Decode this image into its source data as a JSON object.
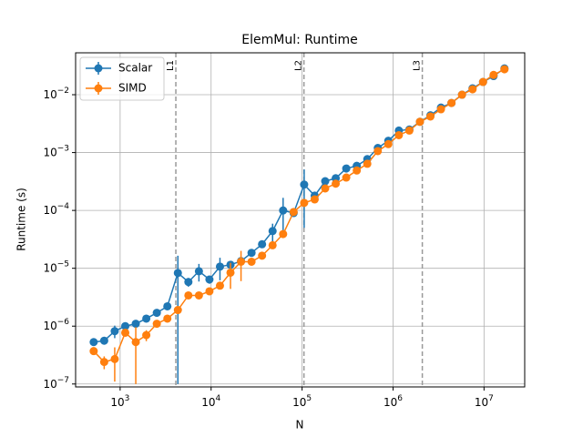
{
  "chart_data": {
    "type": "errorbar-line",
    "title": "ElemMul: Runtime",
    "xlabel": "N",
    "ylabel": "Runtime (s)",
    "xscale": "log",
    "yscale": "log",
    "grid": true,
    "legend": "upper left",
    "xlim": [
      324,
      28000000
    ],
    "ylim": [
      8.9e-08,
      0.053
    ],
    "xticks": [
      {
        "value": 1000,
        "label": "103"
      },
      {
        "value": 10000,
        "label": "104"
      },
      {
        "value": 100000,
        "label": "105"
      },
      {
        "value": 1000000,
        "label": "106"
      },
      {
        "value": 10000000,
        "label": "107"
      }
    ],
    "yticks": [
      {
        "value": 1e-07,
        "label": "10−7"
      },
      {
        "value": 1e-06,
        "label": "10−6"
      },
      {
        "value": 1e-05,
        "label": "10−5"
      },
      {
        "value": 0.0001,
        "label": "10−4"
      },
      {
        "value": 0.001,
        "label": "10−3"
      },
      {
        "value": 0.01,
        "label": "10−2"
      }
    ],
    "vlines": [
      {
        "x": 4096,
        "label": "L1"
      },
      {
        "x": 104858,
        "label": "L2"
      },
      {
        "x": 2097152,
        "label": "L3"
      }
    ],
    "x": [
      512,
      668,
      872,
      1139,
      1486,
      1939,
      2531,
      3304,
      4312,
      5628,
      7346,
      9588,
      12514,
      16334,
      21320,
      27826,
      36319,
      47404,
      61873,
      80758,
      105405,
      137575,
      179563,
      234366,
      305894,
      399254,
      521107,
      680148,
      887727,
      1158659,
      1512283,
      1973830,
      2576249,
      3362530,
      4388784,
      5728254,
      7476537,
      9758311,
      12736469,
      16777216
    ],
    "series": [
      {
        "name": "Scalar",
        "color": "#1f77b4",
        "values": [
          5.3e-07,
          5.6e-07,
          8.2e-07,
          1e-06,
          1.1e-06,
          1.35e-06,
          1.7e-06,
          2.2e-06,
          8.3e-06,
          5.8e-06,
          8.9e-06,
          6.4e-06,
          1.07e-05,
          1.15e-05,
          1.33e-05,
          1.85e-05,
          2.6e-05,
          4.4e-05,
          0.0001,
          9e-05,
          0.00028,
          0.00018,
          0.00032,
          0.00036,
          0.00053,
          0.00059,
          0.00077,
          0.0012,
          0.0016,
          0.0024,
          0.0025,
          0.0034,
          0.0044,
          0.006,
          0.0072,
          0.01,
          0.0129,
          0.0166,
          0.021,
          0.0285
        ],
        "errors": [
          0,
          0,
          2e-07,
          1e-07,
          0,
          0,
          0,
          2e-07,
          8.2e-06,
          1e-06,
          3e-06,
          1e-06,
          4.5e-06,
          0,
          0,
          0,
          0,
          1.5e-05,
          6.5e-05,
          0,
          0.00023,
          0,
          0,
          0,
          0,
          0,
          0,
          0,
          0,
          0.0003,
          0,
          0,
          0,
          0,
          0,
          0,
          0,
          0,
          0,
          0
        ]
      },
      {
        "name": "SIMD",
        "color": "#ff7f0e",
        "values": [
          3.7e-07,
          2.4e-07,
          2.7e-07,
          7.7e-07,
          5.3e-07,
          7e-07,
          1.1e-06,
          1.35e-06,
          1.9e-06,
          3.4e-06,
          3.4e-06,
          4e-06,
          5e-06,
          8.4e-06,
          1.3e-05,
          1.3e-05,
          1.65e-05,
          2.5e-05,
          3.9e-05,
          9.4e-05,
          0.000135,
          0.000155,
          0.00024,
          0.00029,
          0.00037,
          0.00049,
          0.00064,
          0.00106,
          0.0014,
          0.002,
          0.0024,
          0.0034,
          0.0042,
          0.0056,
          0.0072,
          0.01,
          0.0124,
          0.0166,
          0.022,
          0.0275
        ],
        "errors": [
          0,
          6e-08,
          1.6e-07,
          1e-07,
          4.3e-07,
          1.5e-07,
          0,
          0,
          0,
          0,
          0,
          0,
          0,
          4e-06,
          7e-06,
          0,
          0,
          0,
          0,
          1e-05,
          0,
          0,
          0,
          0,
          0,
          0,
          0,
          0,
          0,
          0,
          0,
          0,
          0,
          0,
          0,
          0,
          0,
          0,
          0,
          0
        ]
      }
    ]
  }
}
